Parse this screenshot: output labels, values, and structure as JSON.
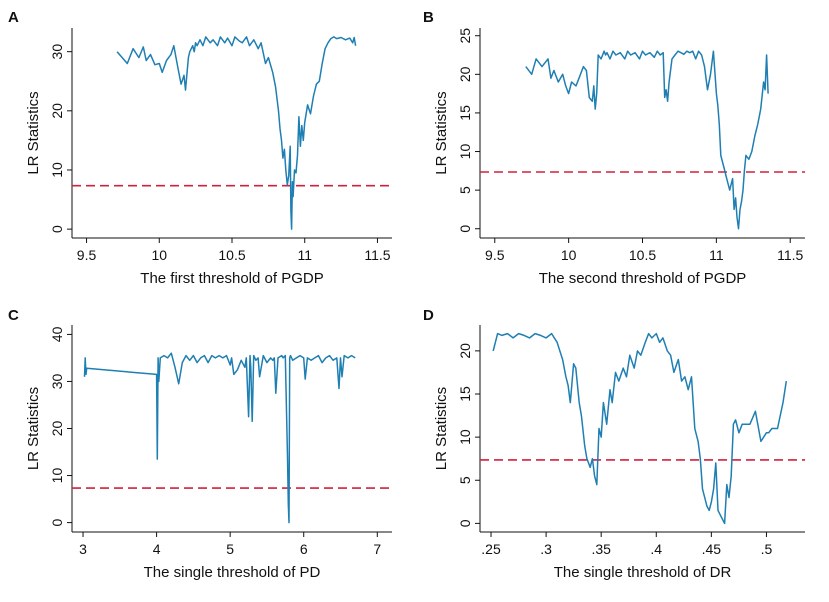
{
  "colors": {
    "series": "#1f7fb3",
    "threshold": "#d0213d",
    "axis": "#111111"
  },
  "chart_data": [
    {
      "type": "line",
      "panel": "A",
      "xlabel": "The first threshold of PGDP",
      "ylabel": "LR Statistics",
      "xlim": [
        9.4,
        11.6
      ],
      "ylim": [
        -1.5,
        34
      ],
      "xticks": [
        9.5,
        10,
        10.5,
        11,
        11.5
      ],
      "xtick_labels": [
        "9.5",
        "10",
        "10.5",
        "11",
        "11.5"
      ],
      "yticks": [
        0,
        10,
        20,
        30
      ],
      "ytick_labels": [
        "0",
        "10",
        "20",
        "30"
      ],
      "threshold_value": 7.35,
      "series": [
        {
          "name": "LR",
          "x": [
            9.71,
            9.78,
            9.82,
            9.86,
            9.89,
            9.91,
            9.94,
            9.97,
            10.0,
            10.02,
            10.05,
            10.08,
            10.1,
            10.13,
            10.15,
            10.17,
            10.18,
            10.2,
            10.21,
            10.23,
            10.24,
            10.25,
            10.26,
            10.28,
            10.3,
            10.32,
            10.35,
            10.37,
            10.4,
            10.42,
            10.45,
            10.47,
            10.5,
            10.52,
            10.55,
            10.57,
            10.6,
            10.62,
            10.65,
            10.68,
            10.7,
            10.73,
            10.75,
            10.78,
            10.8,
            10.82,
            10.83,
            10.84,
            10.85,
            10.86,
            10.87,
            10.88,
            10.89,
            10.9,
            10.905,
            10.91,
            10.915,
            10.92,
            10.93,
            10.94,
            10.95,
            10.96,
            10.97,
            10.98,
            10.99,
            11.0,
            11.02,
            11.04,
            11.06,
            11.08,
            11.1,
            11.12,
            11.14,
            11.16,
            11.18,
            11.2,
            11.22,
            11.25,
            11.28,
            11.31,
            11.33,
            11.34,
            11.35
          ],
          "y": [
            30.0,
            28.0,
            30.5,
            29.0,
            30.8,
            28.5,
            29.5,
            27.8,
            28.0,
            26.5,
            28.5,
            29.5,
            31.0,
            27.0,
            24.5,
            26.0,
            23.5,
            29.0,
            30.0,
            31.0,
            30.0,
            31.5,
            31.0,
            32.0,
            31.0,
            32.5,
            31.5,
            32.0,
            31.0,
            32.5,
            31.5,
            32.3,
            31.0,
            32.5,
            31.8,
            31.5,
            32.5,
            31.0,
            32.0,
            30.5,
            31.5,
            28.0,
            29.0,
            26.5,
            24.0,
            20.0,
            17.0,
            15.0,
            12.0,
            13.5,
            10.0,
            7.5,
            9.0,
            14.0,
            3.0,
            0.0,
            8.0,
            5.5,
            10.0,
            9.5,
            12.5,
            19.0,
            14.0,
            17.5,
            15.0,
            18.0,
            21.0,
            19.5,
            22.5,
            24.5,
            25.0,
            28.0,
            30.5,
            31.5,
            32.2,
            32.5,
            32.2,
            32.4,
            32.0,
            32.3,
            31.5,
            32.4,
            31.0
          ]
        }
      ]
    },
    {
      "type": "line",
      "panel": "B",
      "xlabel": "The second threshold of PGDP",
      "ylabel": "LR Statistics",
      "xlim": [
        9.4,
        11.6
      ],
      "ylim": [
        -1.2,
        26
      ],
      "xticks": [
        9.5,
        10,
        10.5,
        11,
        11.5
      ],
      "xtick_labels": [
        "9.5",
        "10",
        "10.5",
        "11",
        "11.5"
      ],
      "yticks": [
        0,
        5,
        10,
        15,
        20,
        25
      ],
      "ytick_labels": [
        "0",
        "5",
        "10",
        "15",
        "20",
        "25"
      ],
      "threshold_value": 7.35,
      "series": [
        {
          "name": "LR",
          "x": [
            9.71,
            9.75,
            9.78,
            9.82,
            9.86,
            9.88,
            9.9,
            9.93,
            9.96,
            9.98,
            10.0,
            10.02,
            10.05,
            10.07,
            10.1,
            10.12,
            10.14,
            10.16,
            10.17,
            10.18,
            10.19,
            10.2,
            10.22,
            10.24,
            10.25,
            10.26,
            10.28,
            10.3,
            10.32,
            10.35,
            10.38,
            10.4,
            10.42,
            10.45,
            10.48,
            10.5,
            10.52,
            10.55,
            10.58,
            10.6,
            10.62,
            10.64,
            10.65,
            10.66,
            10.67,
            10.68,
            10.7,
            10.72,
            10.74,
            10.76,
            10.78,
            10.8,
            10.82,
            10.84,
            10.86,
            10.88,
            10.9,
            10.92,
            10.94,
            10.96,
            10.98,
            11.0,
            11.01,
            11.02,
            11.03,
            11.05,
            11.07,
            11.09,
            11.11,
            11.12,
            11.13,
            11.14,
            11.15,
            11.16,
            11.17,
            11.18,
            11.19,
            11.2,
            11.22,
            11.24,
            11.26,
            11.28,
            11.3,
            11.32,
            11.33,
            11.34,
            11.35
          ],
          "y": [
            21.0,
            20.0,
            22.0,
            21.0,
            22.0,
            19.5,
            20.5,
            19.0,
            20.0,
            18.5,
            17.5,
            19.0,
            18.5,
            19.5,
            21.0,
            20.5,
            17.0,
            16.5,
            18.5,
            15.5,
            17.5,
            22.5,
            22.0,
            23.0,
            22.5,
            22.8,
            22.0,
            23.0,
            22.5,
            22.8,
            22.0,
            23.0,
            22.5,
            22.8,
            22.0,
            23.0,
            22.5,
            22.8,
            22.2,
            23.0,
            22.5,
            22.8,
            17.0,
            18.0,
            16.5,
            19.0,
            22.0,
            22.5,
            23.0,
            22.8,
            22.6,
            23.0,
            22.8,
            23.0,
            22.0,
            23.0,
            22.5,
            21.0,
            18.0,
            20.0,
            23.0,
            17.5,
            16.0,
            13.5,
            9.5,
            8.0,
            6.5,
            5.0,
            6.5,
            2.5,
            4.0,
            1.5,
            0.0,
            2.5,
            3.5,
            5.0,
            7.5,
            9.5,
            9.0,
            10.0,
            12.0,
            13.5,
            15.5,
            19.0,
            18.0,
            22.5,
            17.5
          ]
        }
      ]
    },
    {
      "type": "line",
      "panel": "C",
      "xlabel": "The single threshold of PD",
      "ylabel": "LR Statistics",
      "xlim": [
        2.85,
        7.2
      ],
      "ylim": [
        -2,
        42
      ],
      "xticks": [
        3,
        4,
        5,
        6,
        7
      ],
      "xtick_labels": [
        "3",
        "4",
        "5",
        "6",
        "7"
      ],
      "yticks": [
        0,
        10,
        20,
        30,
        40
      ],
      "ytick_labels": [
        "0",
        "10",
        "20",
        "30",
        "40"
      ],
      "threshold_value": 7.35,
      "series": [
        {
          "name": "LR",
          "x": [
            3.02,
            3.03,
            3.04,
            3.05,
            4.0,
            4.01,
            4.02,
            4.03,
            4.05,
            4.1,
            4.15,
            4.2,
            4.25,
            4.3,
            4.35,
            4.4,
            4.45,
            4.5,
            4.55,
            4.6,
            4.65,
            4.7,
            4.75,
            4.8,
            4.85,
            4.9,
            4.95,
            5.0,
            5.02,
            5.05,
            5.1,
            5.15,
            5.2,
            5.22,
            5.25,
            5.27,
            5.28,
            5.3,
            5.32,
            5.35,
            5.38,
            5.4,
            5.45,
            5.5,
            5.55,
            5.58,
            5.6,
            5.62,
            5.65,
            5.7,
            5.72,
            5.75,
            5.78,
            5.79,
            5.8,
            5.81,
            5.82,
            5.85,
            5.9,
            5.95,
            6.0,
            6.02,
            6.05,
            6.1,
            6.15,
            6.2,
            6.25,
            6.3,
            6.35,
            6.4,
            6.45,
            6.48,
            6.5,
            6.52,
            6.55,
            6.6,
            6.65,
            6.7
          ],
          "y": [
            31.0,
            35.0,
            31.5,
            32.8,
            31.5,
            13.5,
            35.0,
            30.0,
            35.0,
            35.5,
            35.0,
            36.0,
            33.0,
            29.5,
            34.0,
            35.5,
            34.5,
            35.5,
            34.0,
            35.0,
            35.5,
            34.0,
            35.5,
            35.0,
            35.5,
            35.0,
            35.5,
            33.5,
            35.0,
            31.5,
            32.5,
            34.5,
            33.0,
            35.0,
            22.5,
            35.5,
            33.0,
            21.5,
            35.5,
            34.5,
            35.0,
            31.0,
            35.5,
            34.0,
            35.0,
            34.5,
            35.0,
            27.5,
            35.0,
            35.5,
            35.0,
            35.5,
            14.0,
            4.0,
            0.0,
            35.0,
            35.5,
            34.5,
            35.0,
            35.5,
            35.0,
            30.5,
            35.0,
            34.5,
            35.0,
            35.5,
            34.0,
            35.0,
            35.5,
            34.5,
            35.0,
            28.5,
            35.0,
            31.0,
            35.5,
            35.0,
            35.5,
            35.0
          ]
        }
      ]
    },
    {
      "type": "line",
      "panel": "D",
      "xlabel": "The single threshold of DR",
      "ylabel": "LR Statistics",
      "xlim": [
        0.24,
        0.535
      ],
      "ylim": [
        -1,
        23
      ],
      "xticks": [
        0.25,
        0.3,
        0.35,
        0.4,
        0.45,
        0.5
      ],
      "xtick_labels": [
        ".25",
        ".3",
        ".35",
        ".4",
        ".45",
        ".5"
      ],
      "yticks": [
        0,
        5,
        10,
        15,
        20
      ],
      "ytick_labels": [
        "0",
        "5",
        "10",
        "15",
        "20"
      ],
      "threshold_value": 7.35,
      "series": [
        {
          "name": "LR",
          "x": [
            0.252,
            0.256,
            0.26,
            0.265,
            0.27,
            0.275,
            0.28,
            0.285,
            0.29,
            0.295,
            0.3,
            0.305,
            0.31,
            0.315,
            0.318,
            0.32,
            0.322,
            0.325,
            0.327,
            0.33,
            0.332,
            0.335,
            0.337,
            0.34,
            0.342,
            0.344,
            0.346,
            0.348,
            0.35,
            0.352,
            0.355,
            0.358,
            0.36,
            0.363,
            0.366,
            0.37,
            0.373,
            0.376,
            0.38,
            0.383,
            0.386,
            0.39,
            0.393,
            0.396,
            0.4,
            0.403,
            0.406,
            0.41,
            0.413,
            0.416,
            0.42,
            0.423,
            0.426,
            0.429,
            0.432,
            0.435,
            0.438,
            0.44,
            0.442,
            0.444,
            0.446,
            0.448,
            0.45,
            0.452,
            0.454,
            0.456,
            0.458,
            0.46,
            0.462,
            0.464,
            0.466,
            0.468,
            0.47,
            0.472,
            0.475,
            0.478,
            0.48,
            0.485,
            0.49,
            0.495,
            0.5,
            0.502,
            0.505,
            0.51,
            0.515,
            0.518
          ],
          "y": [
            20.0,
            22.0,
            21.8,
            22.0,
            21.5,
            22.0,
            21.8,
            21.5,
            22.0,
            21.8,
            21.5,
            22.0,
            21.0,
            19.0,
            17.0,
            16.0,
            14.0,
            18.5,
            18.0,
            14.0,
            12.5,
            9.0,
            7.5,
            6.5,
            7.5,
            5.5,
            4.5,
            11.0,
            10.0,
            14.0,
            11.5,
            15.5,
            14.0,
            17.5,
            16.5,
            18.0,
            17.0,
            19.5,
            18.0,
            20.0,
            19.5,
            21.0,
            22.0,
            21.5,
            22.0,
            21.0,
            21.5,
            20.0,
            19.5,
            17.5,
            19.0,
            16.5,
            17.0,
            15.5,
            17.0,
            11.0,
            9.5,
            7.5,
            4.0,
            3.0,
            2.0,
            1.5,
            2.5,
            4.0,
            7.0,
            1.5,
            1.0,
            0.5,
            0.0,
            4.5,
            3.0,
            5.5,
            11.5,
            12.0,
            10.5,
            11.5,
            11.5,
            11.5,
            13.0,
            9.5,
            10.5,
            10.5,
            11.0,
            11.0,
            14.0,
            16.5
          ]
        }
      ]
    }
  ]
}
